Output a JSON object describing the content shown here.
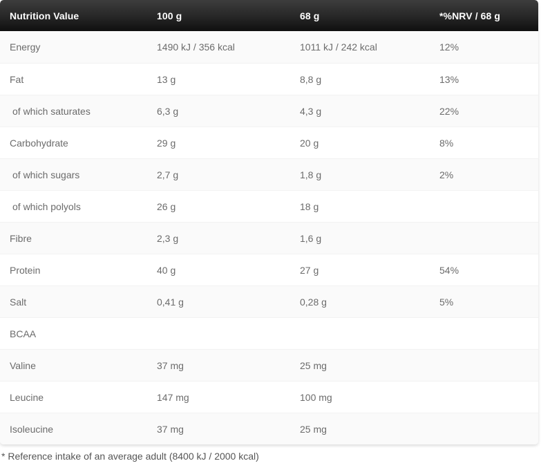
{
  "table": {
    "header": {
      "col1": "Nutrition Value",
      "col2": "100 g",
      "col3": "68 g",
      "col4": "*%NRV / 68 g"
    },
    "rows": [
      {
        "label": "Energy",
        "per100": "1490 kJ / 356 kcal",
        "per68": "1011 kJ / 242 kcal",
        "nrv": "12%",
        "indent": false
      },
      {
        "label": "Fat",
        "per100": "13 g",
        "per68": "8,8 g",
        "nrv": "13%",
        "indent": false
      },
      {
        "label": "of which saturates",
        "per100": "6,3 g",
        "per68": "4,3 g",
        "nrv": "22%",
        "indent": true
      },
      {
        "label": "Carbohydrate",
        "per100": "29 g",
        "per68": "20 g",
        "nrv": "8%",
        "indent": false
      },
      {
        "label": "of which sugars",
        "per100": "2,7 g",
        "per68": "1,8 g",
        "nrv": "2%",
        "indent": true
      },
      {
        "label": "of which polyols",
        "per100": "26 g",
        "per68": "18 g",
        "nrv": "",
        "indent": true
      },
      {
        "label": "Fibre",
        "per100": "2,3 g",
        "per68": "1,6 g",
        "nrv": "",
        "indent": false
      },
      {
        "label": "Protein",
        "per100": "40 g",
        "per68": "27 g",
        "nrv": "54%",
        "indent": false
      },
      {
        "label": "Salt",
        "per100": "0,41 g",
        "per68": "0,28 g",
        "nrv": "5%",
        "indent": false
      },
      {
        "label": "BCAA",
        "per100": "",
        "per68": "",
        "nrv": "",
        "indent": false
      },
      {
        "label": "Valine",
        "per100": "37 mg",
        "per68": "25 mg",
        "nrv": "",
        "indent": false
      },
      {
        "label": "Leucine",
        "per100": "147 mg",
        "per68": "100 mg",
        "nrv": "",
        "indent": false
      },
      {
        "label": "Isoleucine",
        "per100": "37 mg",
        "per68": "25 mg",
        "nrv": "",
        "indent": false
      }
    ],
    "footnote": "* Reference intake of an average adult (8400 kJ / 2000 kcal)"
  },
  "colors": {
    "header_gradient_top": "#3d3d3d",
    "header_gradient_bottom": "#0f0f0f",
    "header_text": "#ffffff",
    "row_alt_background": "#fafafa",
    "row_text": "#6b6b6b",
    "footnote_text": "#555555"
  }
}
